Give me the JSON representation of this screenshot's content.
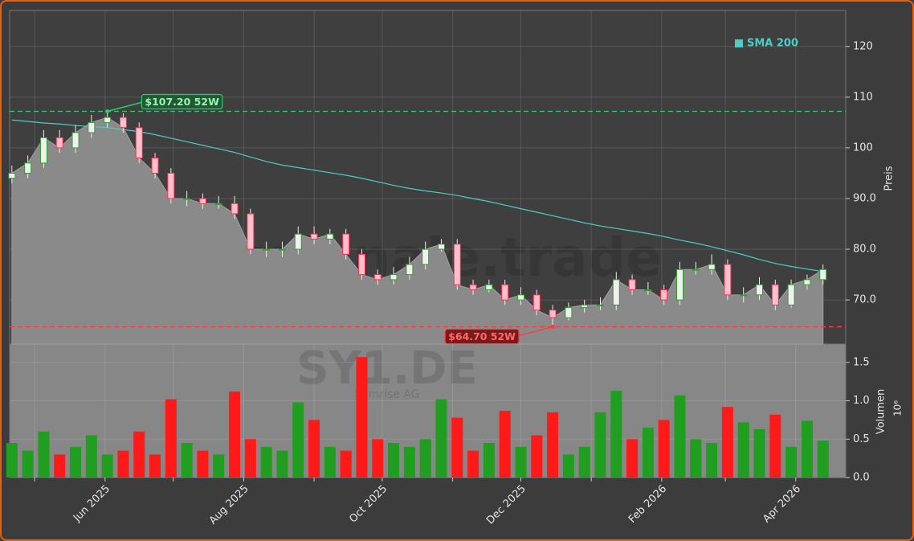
{
  "chart_data": {
    "type": "candlestick",
    "watermark": "forexsignale.trade",
    "symbol": "SY1.DE",
    "company": "Symrise AG",
    "x": [
      "2025-04-21",
      "2025-04-28",
      "2025-05-05",
      "2025-05-12",
      "2025-05-19",
      "2025-05-26",
      "2025-06-02",
      "2025-06-09",
      "2025-06-16",
      "2025-06-23",
      "2025-06-30",
      "2025-07-07",
      "2025-07-14",
      "2025-07-21",
      "2025-07-28",
      "2025-08-04",
      "2025-08-11",
      "2025-08-18",
      "2025-08-25",
      "2025-09-01",
      "2025-09-08",
      "2025-09-15",
      "2025-09-22",
      "2025-09-29",
      "2025-10-06",
      "2025-10-13",
      "2025-10-20",
      "2025-10-27",
      "2025-11-03",
      "2025-11-10",
      "2025-11-17",
      "2025-11-24",
      "2025-12-01",
      "2025-12-08",
      "2025-12-15",
      "2025-12-22",
      "2025-12-29",
      "2026-01-05",
      "2026-01-12",
      "2026-01-19",
      "2026-01-26",
      "2026-02-02",
      "2026-02-09",
      "2026-02-16",
      "2026-02-23",
      "2026-03-02",
      "2026-03-09",
      "2026-03-16",
      "2026-03-23",
      "2026-03-30",
      "2026-04-06",
      "2026-04-13"
    ],
    "open": [
      94,
      95,
      97,
      102,
      100,
      103,
      105,
      106,
      104,
      98,
      95,
      90,
      90,
      89,
      89,
      87,
      80,
      80,
      80,
      83,
      82,
      83,
      79,
      75,
      74,
      75,
      77,
      80,
      81,
      73,
      72,
      73,
      70,
      71,
      68,
      66.5,
      68.5,
      69,
      69,
      74,
      72,
      72,
      70,
      76,
      76,
      77,
      71,
      71,
      73,
      69,
      73,
      74
    ],
    "high": [
      96.5,
      98.5,
      103.5,
      103.5,
      104.5,
      106.5,
      107.2,
      106.8,
      105,
      99,
      96,
      91.5,
      91,
      90.5,
      90.5,
      88,
      81.5,
      81.5,
      84.5,
      84.5,
      84,
      84,
      80,
      76,
      76.5,
      78.5,
      81.5,
      82,
      82,
      74,
      74,
      74,
      72.5,
      72,
      69,
      69.5,
      70,
      70.5,
      75.5,
      75,
      73.5,
      73,
      77.5,
      77.5,
      79,
      78,
      72.5,
      74.5,
      74,
      74,
      75,
      77
    ],
    "low": [
      93,
      94,
      96,
      99,
      99,
      102,
      104,
      103,
      97,
      94,
      89,
      88.5,
      88,
      88,
      86,
      79,
      78.5,
      78.5,
      79,
      81,
      81,
      78,
      74,
      73,
      73,
      74,
      76,
      79.5,
      72,
      71,
      71.5,
      69,
      69,
      67,
      64.7,
      66,
      67.5,
      68,
      68,
      71,
      71,
      69,
      69,
      75,
      75,
      70,
      69.5,
      70,
      68,
      68.5,
      72,
      73
    ],
    "close": [
      95,
      97,
      102,
      100,
      103,
      105,
      106,
      104,
      98,
      95,
      90,
      90,
      89,
      89,
      87,
      80,
      80,
      80,
      83,
      82,
      83,
      79,
      75,
      74,
      75,
      77,
      80,
      81,
      73,
      72,
      73,
      70,
      71,
      68,
      66.5,
      68.5,
      69,
      69,
      74,
      72,
      72,
      70,
      76,
      76,
      77,
      71,
      71,
      73,
      69,
      73,
      74,
      76
    ],
    "up_color": "#2ca02c",
    "down_color": "#ff2d55",
    "area_color": "#8a8a8a",
    "sma": {
      "name": "SMA 200",
      "color": "#4ecdc4",
      "values": [
        105.5,
        105.2,
        104.9,
        104.7,
        104.4,
        104.2,
        104,
        103.6,
        103.2,
        102.6,
        101.9,
        101.2,
        100.5,
        99.8,
        99.1,
        98.2,
        97.3,
        96.6,
        96.1,
        95.6,
        95.1,
        94.6,
        94,
        93.3,
        92.6,
        92,
        91.5,
        91.1,
        90.6,
        90,
        89.4,
        88.7,
        88,
        87.3,
        86.6,
        85.9,
        85.2,
        84.6,
        84.1,
        83.6,
        83.1,
        82.5,
        81.8,
        81.2,
        80.5,
        79.7,
        78.9,
        78,
        77.2,
        76.6,
        76.1,
        75.6
      ]
    },
    "legend": "upper right",
    "ylabel": "Preis",
    "ylim": [
      61.3,
      127.1
    ],
    "yticks": [
      {
        "value": 70,
        "label": "70.0"
      },
      {
        "value": 80,
        "label": "80.0"
      },
      {
        "value": 90,
        "label": "90.0"
      },
      100,
      110,
      120
    ],
    "annotations": [
      {
        "value": 107.2,
        "label": "$107.20 52W",
        "color": "#2ecc71"
      },
      {
        "value": 64.7,
        "label": "$64.70 52W",
        "color": "#ff3b3b"
      }
    ],
    "grid": true,
    "xlim": [
      "2025-04-20",
      "2026-04-23"
    ],
    "xticks": [
      {
        "value": "2025-05-01",
        "label": null
      },
      {
        "value": "2025-06-01",
        "label": "Jun 2025"
      },
      {
        "value": "2025-07-01",
        "label": null
      },
      {
        "value": "2025-08-01",
        "label": "Aug 2025"
      },
      {
        "value": "2025-09-01",
        "label": null
      },
      {
        "value": "2025-10-01",
        "label": "Oct 2025"
      },
      {
        "value": "2025-11-01",
        "label": null
      },
      {
        "value": "2025-12-01",
        "label": "Dec 2025"
      },
      {
        "value": "2026-01-01",
        "label": null
      },
      {
        "value": "2026-02-01",
        "label": "Feb 2026"
      },
      {
        "value": "2026-03-01",
        "label": null
      },
      {
        "value": "2026-04-01",
        "label": "Apr 2026"
      }
    ],
    "volume": {
      "ylabel": "Volumen",
      "unit_label": "10⁶",
      "up_color": "#1f9e1f",
      "down_color": "#ff1a1a",
      "values": [
        0.45,
        0.35,
        0.6,
        0.3,
        0.4,
        0.55,
        0.3,
        0.35,
        0.6,
        0.3,
        1.02,
        0.45,
        0.35,
        0.3,
        1.12,
        0.5,
        0.4,
        0.35,
        0.98,
        0.75,
        0.4,
        0.35,
        1.57,
        0.5,
        0.45,
        0.4,
        0.5,
        1.02,
        0.78,
        0.35,
        0.45,
        0.87,
        0.4,
        0.55,
        0.85,
        0.3,
        0.4,
        0.85,
        1.13,
        0.5,
        0.65,
        0.75,
        1.07,
        0.5,
        0.45,
        0.92,
        0.72,
        0.63,
        0.82,
        0.4,
        0.74,
        0.48
      ],
      "ylim": [
        0,
        1.74
      ],
      "yticks": [
        {
          "value": 0,
          "label": "0.0"
        },
        {
          "value": 0.5,
          "label": "0.5"
        },
        {
          "value": 1,
          "label": "1.0"
        },
        1.5
      ]
    }
  }
}
